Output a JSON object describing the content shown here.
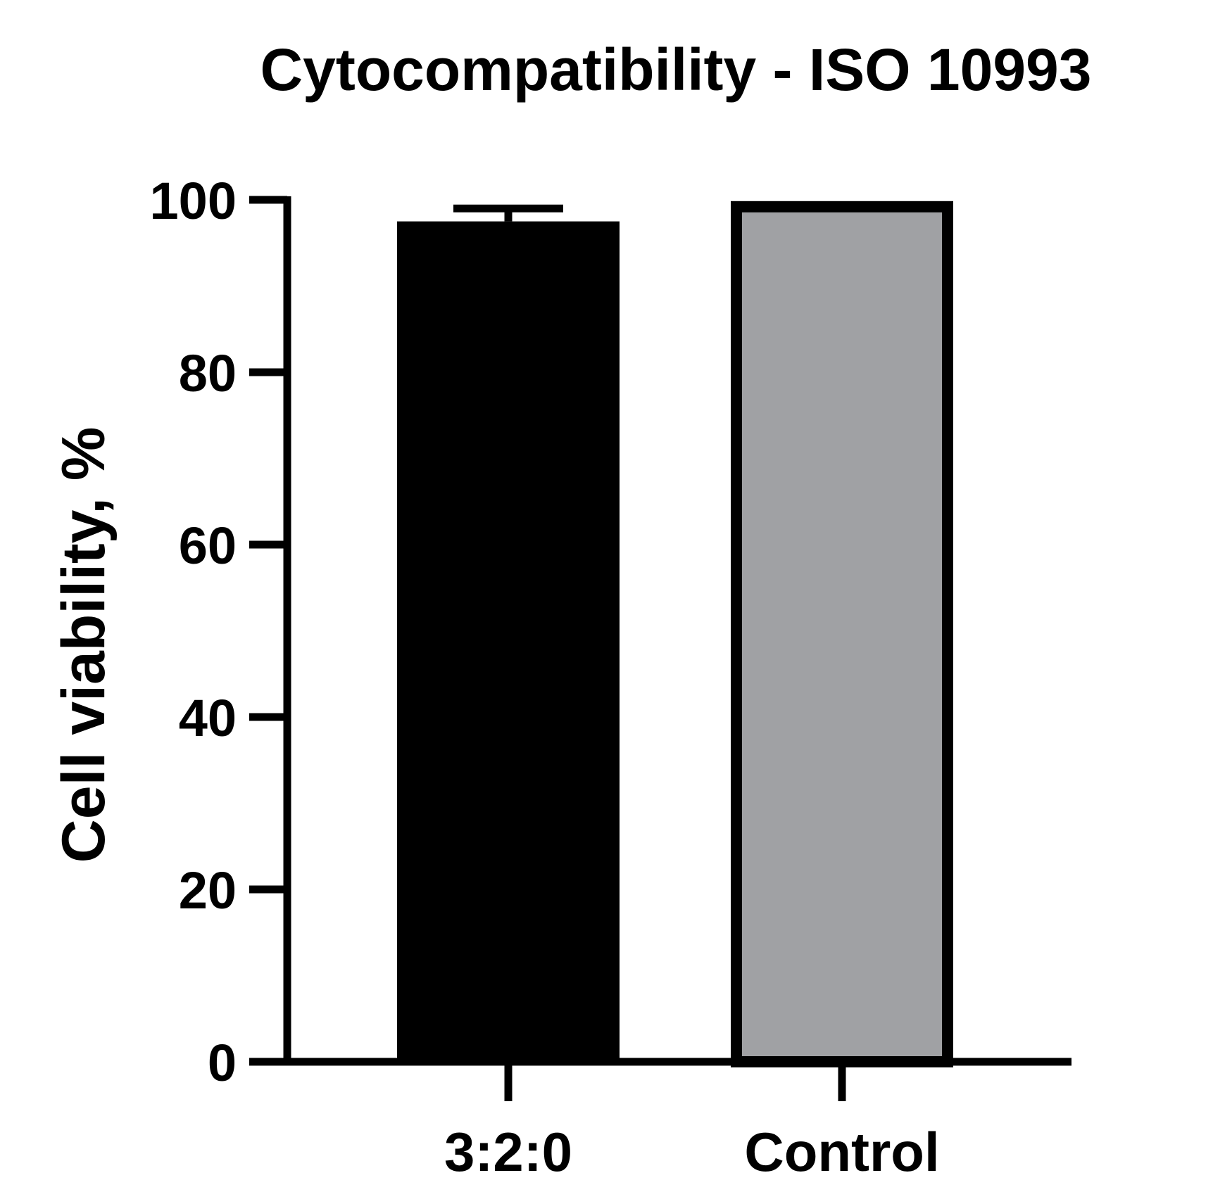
{
  "chart_data": {
    "type": "bar",
    "title": "Cytocompatibility - ISO 10993",
    "xlabel": "",
    "ylabel": "Cell viability, %",
    "ylim": [
      0,
      100
    ],
    "yticks": [
      0,
      20,
      40,
      60,
      80,
      100
    ],
    "categories": [
      "3:2:0",
      "Control"
    ],
    "values": [
      97.5,
      99.2
    ],
    "errors": [
      1.5,
      0
    ],
    "bar_colors": [
      "#000000",
      "#a0a1a4"
    ],
    "grid": false,
    "legend": "none"
  }
}
